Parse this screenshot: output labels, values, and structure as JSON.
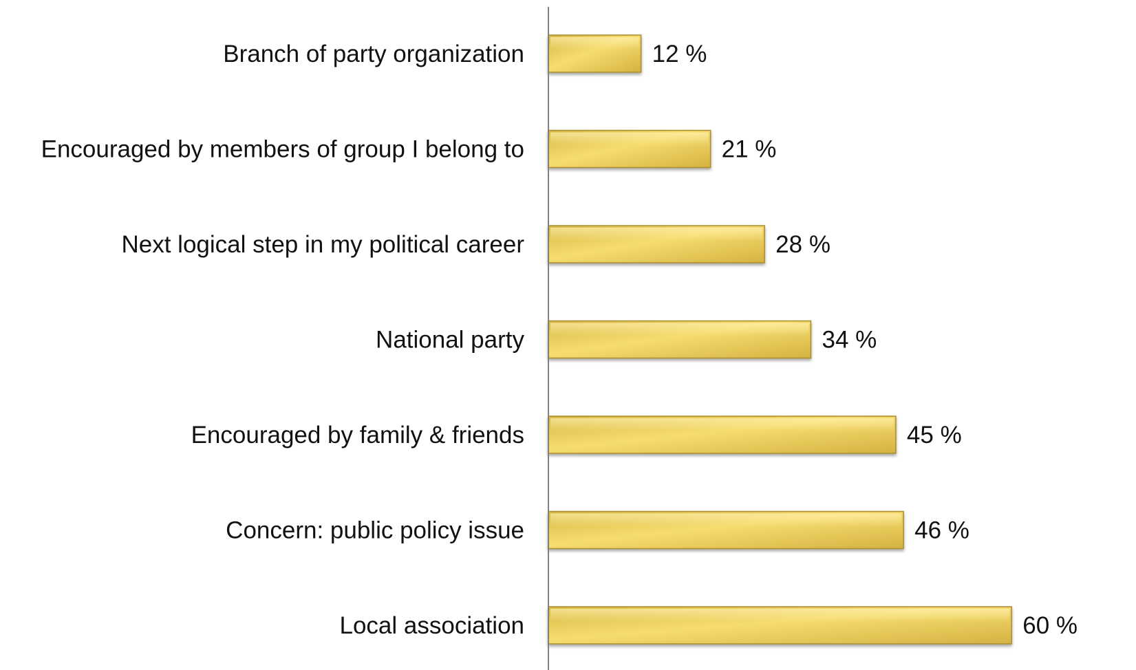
{
  "chart_data": {
    "type": "bar",
    "orientation": "horizontal",
    "categories": [
      "Branch of party organization",
      "Encouraged by members of group I belong to",
      "Next logical step in my political career",
      "National party",
      "Encouraged by family & friends",
      "Concern: public policy issue",
      "Local association"
    ],
    "values": [
      12,
      21,
      28,
      34,
      45,
      46,
      60
    ],
    "value_labels": [
      "12 %",
      "21 %",
      "28 %",
      "34 %",
      "45 %",
      "46 %",
      "60 %"
    ],
    "title": "",
    "xlabel": "",
    "ylabel": "",
    "xlim": [
      0,
      68
    ],
    "grid": false,
    "legend": "none",
    "colors": {
      "bar_light": "#f7dc6f",
      "bar_mid": "#e9c84a",
      "bar_dark": "#c9a534",
      "bar_edge": "#a98d2e",
      "axis": "#808080"
    }
  }
}
